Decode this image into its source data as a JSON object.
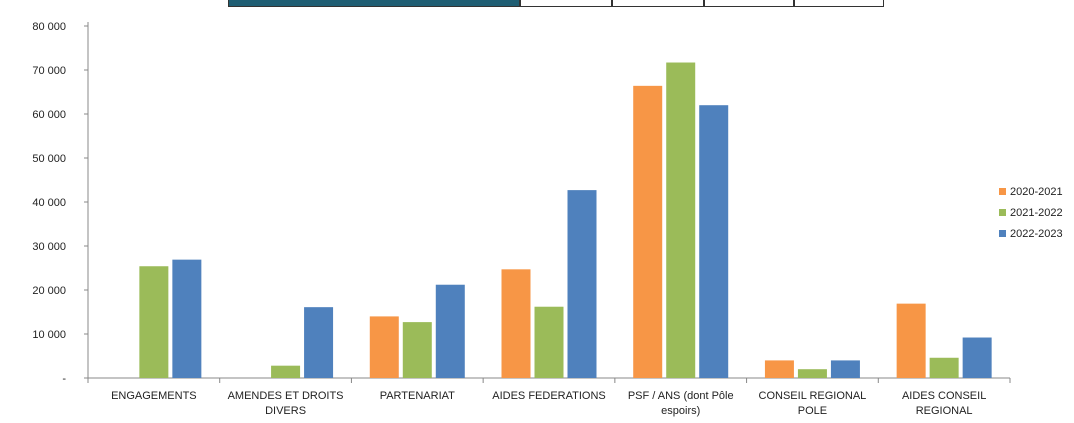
{
  "chart_data": {
    "type": "bar",
    "title": "",
    "xlabel": "",
    "ylabel": "",
    "ylim": [
      0,
      80000
    ],
    "yticks": [
      0,
      10000,
      20000,
      30000,
      40000,
      50000,
      60000,
      70000,
      80000
    ],
    "ytick_labels": [
      "-",
      "10 000",
      "20 000",
      "30 000",
      "40 000",
      "50 000",
      "60 000",
      "70 000",
      "80 000"
    ],
    "grid": false,
    "legend_position": "right",
    "categories": [
      [
        "ENGAGEMENTS"
      ],
      [
        "AMENDES ET DROITS",
        "DIVERS"
      ],
      [
        "PARTENARIAT"
      ],
      [
        "AIDES FEDERATIONS"
      ],
      [
        "PSF / ANS (dont Pôle",
        "espoirs)"
      ],
      [
        "CONSEIL REGIONAL",
        "POLE"
      ],
      [
        "AIDES CONSEIL",
        "REGIONAL"
      ]
    ],
    "series": [
      {
        "name": "2020-2021",
        "color": "#f79646",
        "values": [
          0,
          0,
          14000,
          24700,
          66400,
          4000,
          16900
        ]
      },
      {
        "name": "2021-2022",
        "color": "#9bbb59",
        "values": [
          25400,
          2800,
          12700,
          16200,
          71700,
          2000,
          4600
        ]
      },
      {
        "name": "2022-2023",
        "color": "#4f81bd",
        "values": [
          26900,
          16100,
          21200,
          42700,
          62000,
          4000,
          9200
        ]
      }
    ]
  }
}
